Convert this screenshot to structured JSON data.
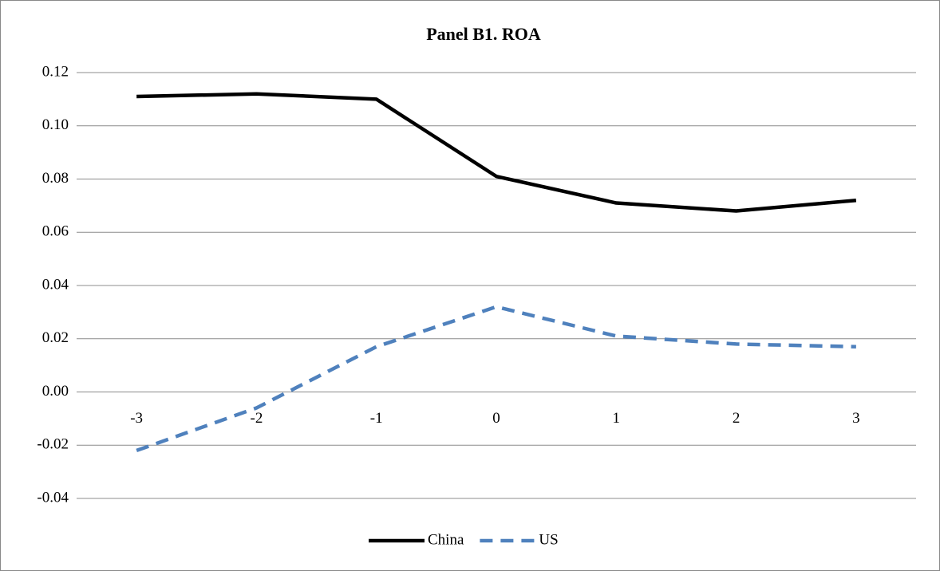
{
  "chart_data": {
    "type": "line",
    "title": "Panel B1. ROA",
    "categories": [
      "-3",
      "-2",
      "-1",
      "0",
      "1",
      "2",
      "3"
    ],
    "series": [
      {
        "name": "China",
        "color": "#000000",
        "line_style": "solid",
        "values": [
          0.111,
          0.112,
          0.11,
          0.081,
          0.071,
          0.068,
          0.072
        ]
      },
      {
        "name": "US",
        "color": "#4f81bd",
        "line_style": "dashed",
        "values": [
          -0.022,
          -0.006,
          0.017,
          0.032,
          0.021,
          0.018,
          0.017
        ]
      }
    ],
    "ylim": [
      -0.04,
      0.12
    ],
    "yticks": [
      -0.04,
      -0.02,
      {
        "value": 0,
        "label": "0.00"
      },
      0.02,
      0.04,
      0.06,
      0.08,
      {
        "value": 0.1,
        "label": "0.10"
      },
      0.12
    ],
    "grid": true,
    "legend": "bottom"
  }
}
